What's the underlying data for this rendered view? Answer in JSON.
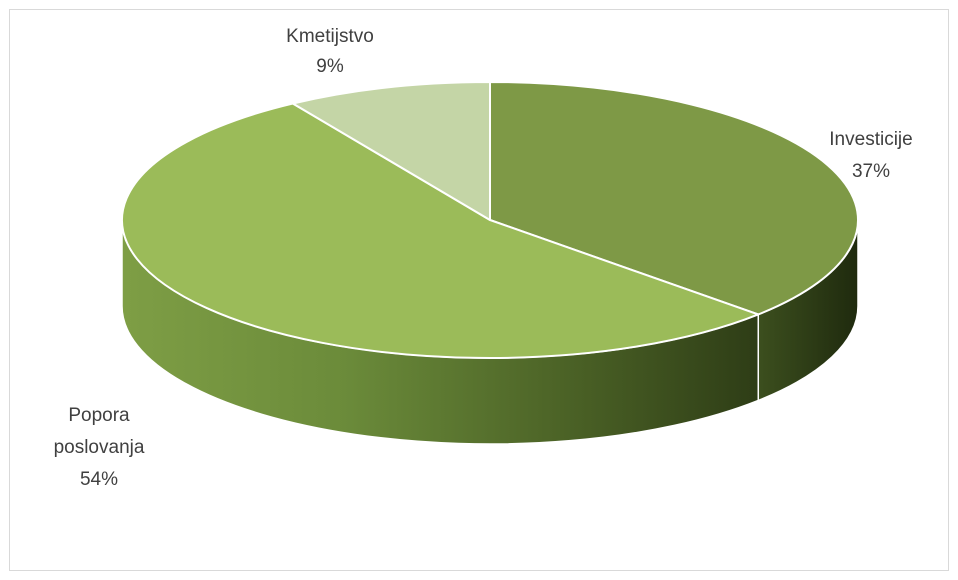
{
  "chart_data": {
    "type": "pie",
    "style": "3d",
    "title": "",
    "slices": [
      {
        "label": "Investicije",
        "value": 37,
        "value_label": "37%",
        "color": "#7e9946"
      },
      {
        "label": "Popora poslovanja",
        "label_lines": [
          "Popora",
          "poslovanja"
        ],
        "value": 54,
        "value_label": "54%",
        "color": "#9bbb59"
      },
      {
        "label": "Kmetijstvo",
        "value": 9,
        "value_label": "9%",
        "color": "#c4d5a6"
      }
    ],
    "legend": "none"
  }
}
